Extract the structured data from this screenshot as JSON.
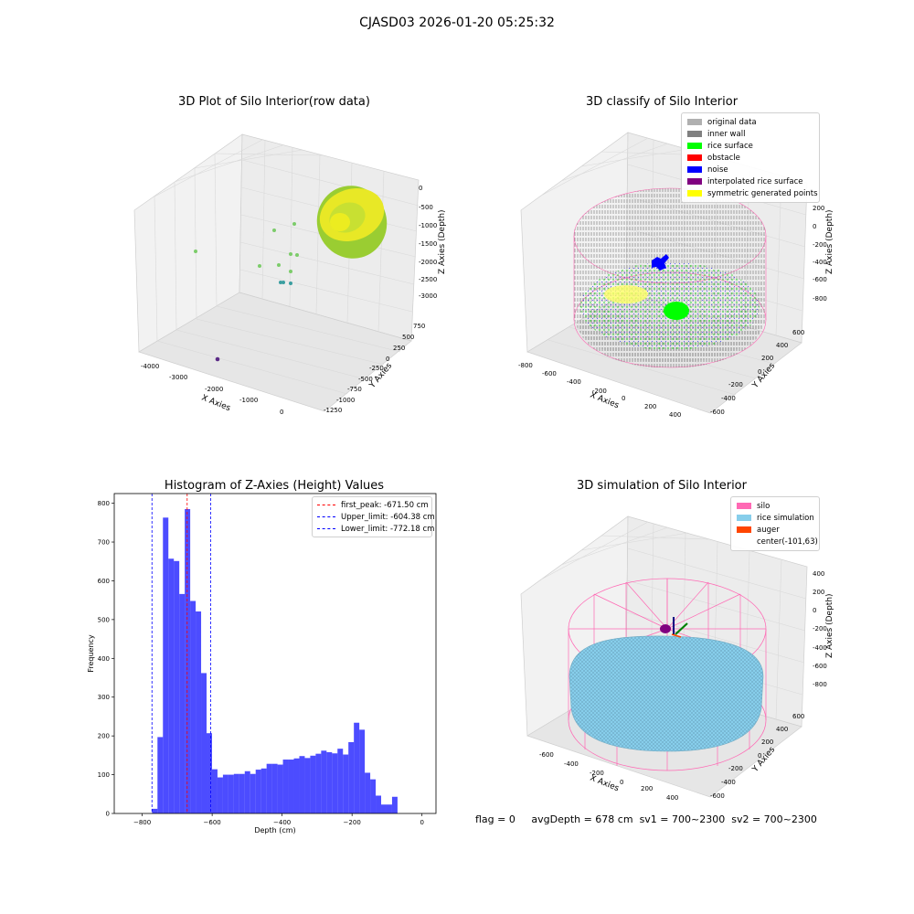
{
  "figure": {
    "suptitle": "CJASD03 2026-01-20 05:25:32"
  },
  "panels": {
    "raw": {
      "title": "3D Plot of Silo Interior(row data)",
      "xlabel": "X Axies",
      "ylabel": "Y Axies",
      "zlabel": "Z Axies (Depth)",
      "xticks": [
        "-4000",
        "-3000",
        "-2000",
        "-1000",
        "0"
      ],
      "yticks": [
        "750",
        "500",
        "250",
        "0",
        "-250",
        "-500",
        "-750",
        "-1000",
        "-1250"
      ],
      "zticks": [
        "0",
        "-500",
        "-1000",
        "-1500",
        "-2000",
        "-2500",
        "-3000"
      ]
    },
    "classify": {
      "title": "3D classify of Silo Interior",
      "xlabel": "X Axies",
      "ylabel": "Y Axies",
      "zlabel": "Z Axies (Depth)",
      "xticks": [
        "-800",
        "-600",
        "-400",
        "-200",
        "0",
        "200",
        "400"
      ],
      "yticks": [
        "600",
        "400",
        "200",
        "0",
        "-200",
        "-400",
        "-600"
      ],
      "zticks": [
        "200",
        "0",
        "-200",
        "-400",
        "-600",
        "-800"
      ],
      "legend": [
        {
          "label": "original data",
          "color": "#b0b0b0"
        },
        {
          "label": "inner wall",
          "color": "#808080"
        },
        {
          "label": "rice surface",
          "color": "#00ff00"
        },
        {
          "label": "obstacle",
          "color": "#ff0000"
        },
        {
          "label": "noise",
          "color": "#0000ff"
        },
        {
          "label": "interpolated rice surface",
          "color": "#800080"
        },
        {
          "label": "symmetric generated points",
          "color": "#ffff00"
        }
      ]
    },
    "simulation": {
      "title": "3D simulation of Silo Interior",
      "xlabel": "X Axies",
      "ylabel": "Y Axies",
      "zlabel": "Z Axies (Depth)",
      "xticks": [
        "-600",
        "-400",
        "-200",
        "0",
        "200",
        "400"
      ],
      "yticks": [
        "600",
        "400",
        "200",
        "0",
        "-200",
        "-400",
        "-600"
      ],
      "zticks": [
        "400",
        "200",
        "0",
        "-200",
        "-400",
        "-600",
        "-800"
      ],
      "legend": [
        {
          "label": "silo",
          "color": "#ff69b4"
        },
        {
          "label": "rice simulation",
          "color": "#87ceeb"
        },
        {
          "label": "auger",
          "color": "#ff4500"
        },
        {
          "label": "center(-101,63)",
          "color": ""
        }
      ]
    }
  },
  "status": {
    "flag": "flag = 0",
    "avg_depth": "avgDepth = 678 cm",
    "sv1": "sv1 = 700~2300",
    "sv2": "sv2 = 700~2300"
  },
  "chart_data": {
    "type": "bar",
    "title": "Histogram of Z-Axies (Height) Values",
    "xlabel": "Depth (cm)",
    "ylabel": "Frequency",
    "xlim": [
      -880,
      40
    ],
    "ylim": [
      0,
      825
    ],
    "xticks": [
      -800,
      -600,
      -400,
      -200,
      0
    ],
    "yticks": [
      0,
      100,
      200,
      300,
      400,
      500,
      600,
      700,
      800
    ],
    "bar_color": "#0000ff",
    "bar_alpha": 0.7,
    "bin_width": 15.6,
    "bin_start": -772,
    "values": [
      12,
      197,
      763,
      657,
      651,
      566,
      785,
      548,
      521,
      362,
      207,
      114,
      93,
      100,
      100,
      102,
      102,
      109,
      102,
      113,
      116,
      128,
      128,
      126,
      139,
      139,
      142,
      148,
      143,
      149,
      154,
      162,
      158,
      155,
      167,
      152,
      184,
      234,
      216,
      105,
      88,
      46,
      23,
      23,
      43
    ],
    "vlines": [
      {
        "x": -671.5,
        "color": "#ff0000",
        "label": "first_peak: -671.50 cm"
      },
      {
        "x": -604.38,
        "color": "#0000ff",
        "label": "Upper_limit: -604.38 cm"
      },
      {
        "x": -772.18,
        "color": "#0000ff",
        "label": "Lower_limit: -772.18 cm"
      }
    ],
    "legend_position": "upper right"
  }
}
